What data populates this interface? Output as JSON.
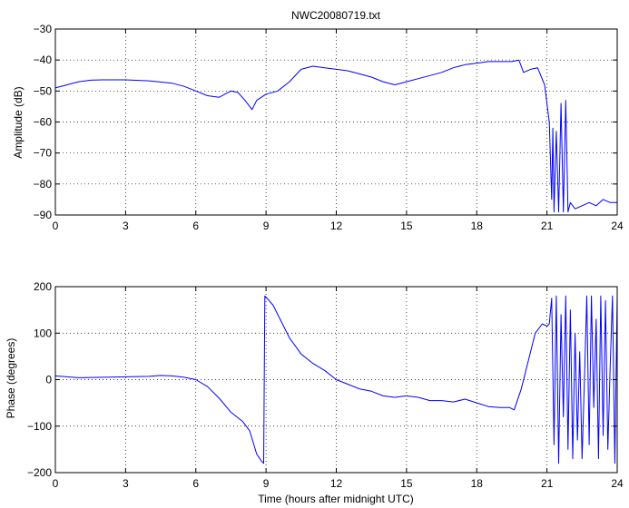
{
  "chart_data": [
    {
      "type": "line",
      "title": "NWC20080719.txt",
      "xlabel": "",
      "ylabel": "Amplitude (dB)",
      "xlim": [
        0,
        24
      ],
      "ylim": [
        -90,
        -30
      ],
      "xticks": [
        0,
        3,
        6,
        9,
        12,
        15,
        18,
        21,
        24
      ],
      "yticks": [
        -90,
        -80,
        -70,
        -60,
        -50,
        -40,
        -30
      ],
      "grid": true,
      "line_color": "#0000ff",
      "x": [
        0,
        0.5,
        1,
        1.5,
        2,
        3,
        4,
        5,
        5.5,
        6,
        6.5,
        7,
        7.5,
        7.8,
        8.1,
        8.4,
        8.6,
        8.8,
        9.0,
        9.5,
        10,
        10.5,
        11,
        11.5,
        12,
        12.5,
        13,
        13.5,
        14,
        14.5,
        15,
        15.5,
        16,
        16.5,
        17,
        17.5,
        18,
        18.5,
        19,
        19.5,
        19.8,
        20.0,
        20.3,
        20.6,
        20.9,
        21.1,
        21.2,
        21.25,
        21.3,
        21.4,
        21.5,
        21.6,
        21.7,
        21.8,
        21.9,
        22.0,
        22.2,
        22.5,
        22.8,
        23.1,
        23.4,
        23.7,
        24.0
      ],
      "y": [
        -49,
        -48,
        -47,
        -46.5,
        -46.4,
        -46.4,
        -46.7,
        -47.5,
        -48.5,
        -50,
        -51.5,
        -52,
        -50,
        -50.5,
        -53,
        -56,
        -53,
        -52,
        -51,
        -50,
        -47,
        -43,
        -42,
        -42.5,
        -43,
        -43.5,
        -44.5,
        -45.5,
        -47,
        -48,
        -47,
        -46,
        -45,
        -44,
        -42.5,
        -41.5,
        -41,
        -40.5,
        -40.5,
        -40.5,
        -40,
        -44,
        -43,
        -42.5,
        -48,
        -60,
        -85,
        -62,
        -89,
        -63,
        -89,
        -54,
        -89,
        -53,
        -89,
        -86,
        -88,
        -87,
        -86,
        -87,
        -85,
        -86,
        -86
      ]
    },
    {
      "type": "line",
      "title": "",
      "xlabel": "Time (hours after midnight UTC)",
      "ylabel": "Phase (degrees)",
      "xlim": [
        0,
        24
      ],
      "ylim": [
        -200,
        200
      ],
      "xticks": [
        0,
        3,
        6,
        9,
        12,
        15,
        18,
        21,
        24
      ],
      "yticks": [
        -200,
        -100,
        0,
        100,
        200
      ],
      "grid": true,
      "line_color": "#0000ff",
      "x": [
        0,
        0.5,
        1,
        2,
        3,
        4,
        4.5,
        5,
        5.5,
        6,
        6.5,
        7,
        7.5,
        8,
        8.3,
        8.6,
        8.8,
        8.9,
        8.95,
        9.1,
        9.3,
        9.6,
        10,
        10.5,
        11,
        11.5,
        12,
        12.5,
        13,
        13.5,
        14,
        14.5,
        15,
        15.5,
        16,
        16.5,
        17,
        17.5,
        18,
        18.5,
        19,
        19.4,
        19.6,
        19.9,
        20.2,
        20.5,
        20.8,
        21.0,
        21.1,
        21.2,
        21.3,
        21.4,
        21.5,
        21.6,
        21.7,
        21.8,
        21.9,
        22.0,
        22.1,
        22.2,
        22.3,
        22.4,
        22.5,
        22.6,
        22.7,
        22.8,
        22.9,
        23.0,
        23.1,
        23.2,
        23.3,
        23.4,
        23.5,
        23.6,
        23.7,
        23.8,
        23.9,
        24.0
      ],
      "y": [
        8,
        6,
        4,
        5,
        6,
        7,
        9,
        8,
        5,
        0,
        -15,
        -40,
        -70,
        -90,
        -110,
        -160,
        -175,
        -180,
        180,
        172,
        160,
        130,
        90,
        55,
        35,
        20,
        0,
        -10,
        -20,
        -25,
        -35,
        -38,
        -35,
        -38,
        -45,
        -45,
        -48,
        -42,
        -50,
        -58,
        -60,
        -60,
        -65,
        -20,
        40,
        100,
        120,
        115,
        120,
        175,
        -140,
        180,
        -180,
        140,
        -80,
        180,
        -150,
        150,
        -170,
        100,
        -130,
        60,
        -170,
        0,
        180,
        -140,
        180,
        -60,
        130,
        -170,
        180,
        -120,
        170,
        -150,
        30,
        180,
        -180,
        180
      ]
    }
  ]
}
